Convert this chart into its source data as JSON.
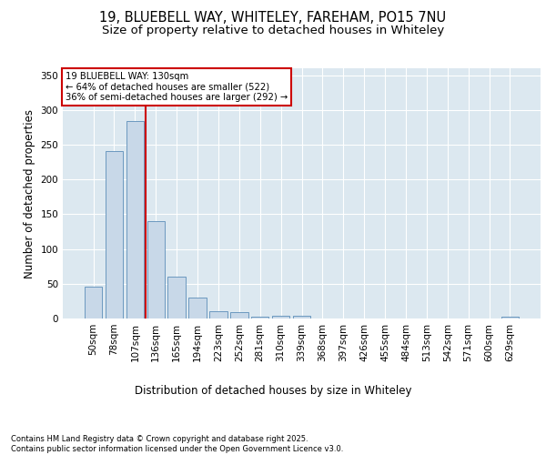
{
  "title_line1": "19, BLUEBELL WAY, WHITELEY, FAREHAM, PO15 7NU",
  "title_line2": "Size of property relative to detached houses in Whiteley",
  "xlabel": "Distribution of detached houses by size in Whiteley",
  "ylabel": "Number of detached properties",
  "categories": [
    "50sqm",
    "78sqm",
    "107sqm",
    "136sqm",
    "165sqm",
    "194sqm",
    "223sqm",
    "252sqm",
    "281sqm",
    "310sqm",
    "339sqm",
    "368sqm",
    "397sqm",
    "426sqm",
    "455sqm",
    "484sqm",
    "513sqm",
    "542sqm",
    "571sqm",
    "600sqm",
    "629sqm"
  ],
  "values": [
    46,
    241,
    284,
    140,
    60,
    30,
    10,
    9,
    3,
    4,
    4,
    0,
    0,
    0,
    0,
    0,
    0,
    0,
    0,
    0,
    3
  ],
  "bar_color": "#c8d8e8",
  "bar_edgecolor": "#5b8db8",
  "vline_x": 2.5,
  "vline_color": "#cc0000",
  "annotation_text": "19 BLUEBELL WAY: 130sqm\n← 64% of detached houses are smaller (522)\n36% of semi-detached houses are larger (292) →",
  "annotation_box_color": "#cc0000",
  "background_color": "#dce8f0",
  "ylim": [
    0,
    360
  ],
  "yticks": [
    0,
    50,
    100,
    150,
    200,
    250,
    300,
    350
  ],
  "footer_text": "Contains HM Land Registry data © Crown copyright and database right 2025.\nContains public sector information licensed under the Open Government Licence v3.0.",
  "title_fontsize": 10.5,
  "subtitle_fontsize": 9.5,
  "axis_fontsize": 8.5,
  "tick_fontsize": 7.5,
  "footer_fontsize": 6.0
}
